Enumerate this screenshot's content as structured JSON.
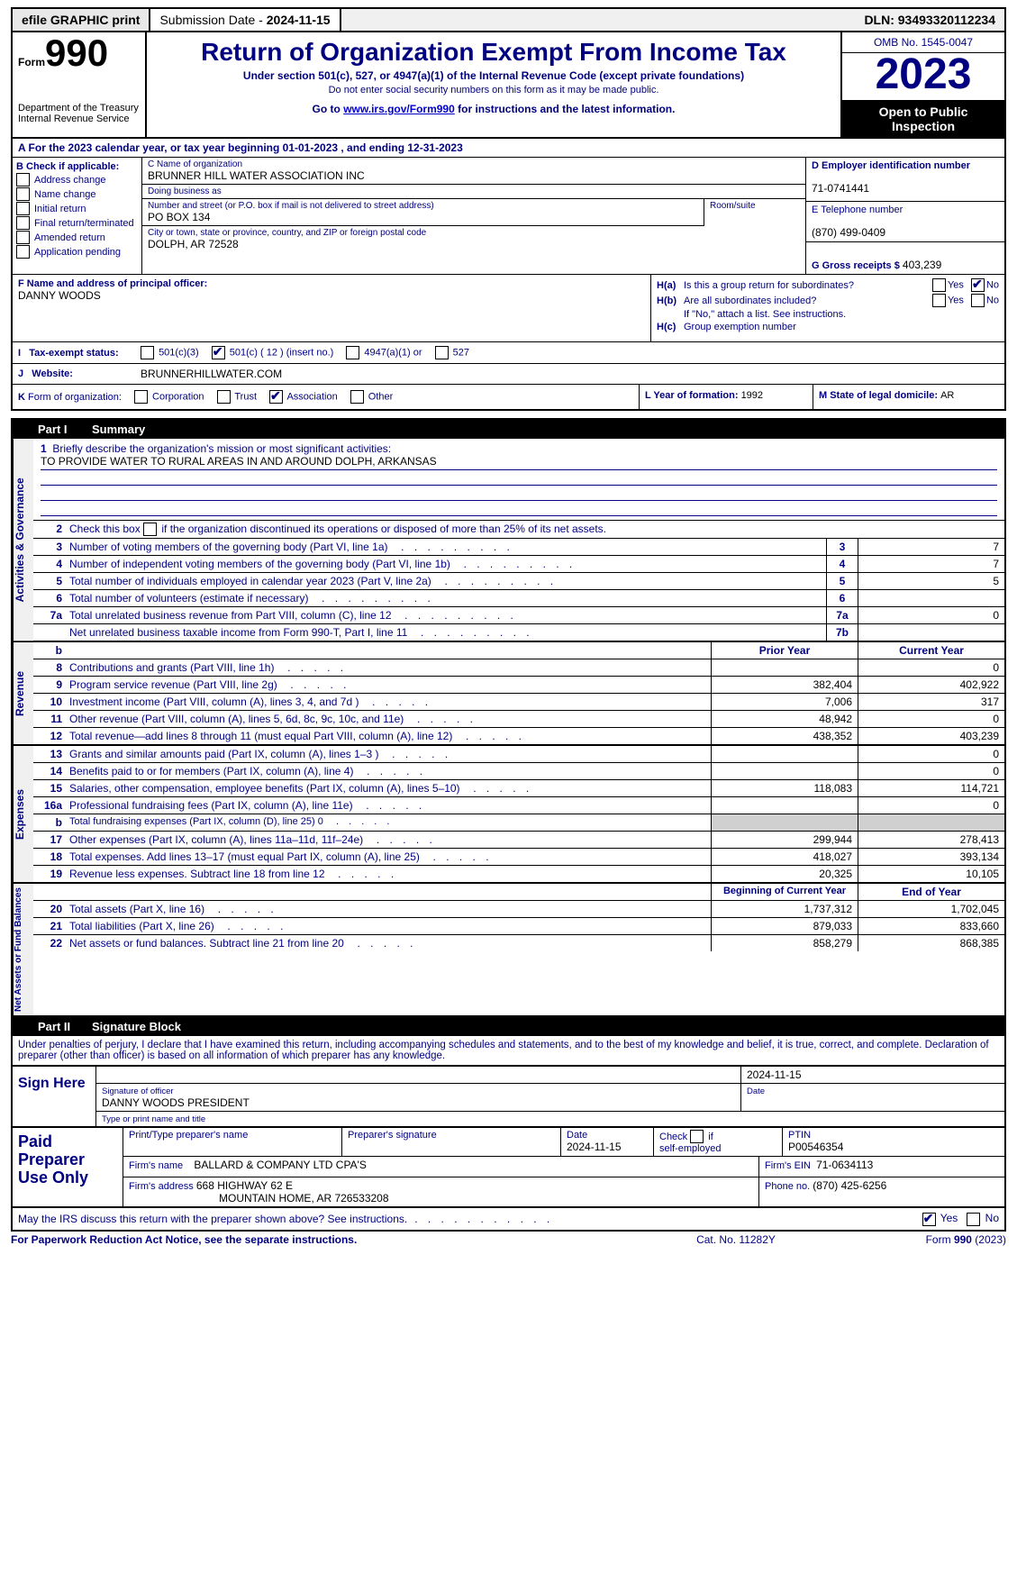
{
  "topbar": {
    "efile": "efile GRAPHIC print",
    "subdate_label": "Submission Date - ",
    "subdate": "2024-11-15",
    "dln_label": "DLN: ",
    "dln": "93493320112234"
  },
  "header": {
    "form_word": "Form",
    "form_num": "990",
    "dept": "Department of the Treasury",
    "irs": "Internal Revenue Service",
    "title": "Return of Organization Exempt From Income Tax",
    "sub1": "Under section 501(c), 527, or 4947(a)(1) of the Internal Revenue Code (except private foundations)",
    "sub2": "Do not enter social security numbers on this form as it may be made public.",
    "sub3_pre": "Go to ",
    "sub3_link": "www.irs.gov/Form990",
    "sub3_post": " for instructions and the latest information.",
    "omb": "OMB No. 1545-0047",
    "year": "2023",
    "open": "Open to Public Inspection"
  },
  "rowA": "A For the 2023 calendar year, or tax year beginning 01-01-2023     , and ending 12-31-2023",
  "boxB": {
    "label": "B Check if applicable:",
    "items": [
      "Address change",
      "Name change",
      "Initial return",
      "Final return/terminated",
      "Amended return",
      "Application pending"
    ]
  },
  "boxC": {
    "name_label": "C Name of organization",
    "name": "BRUNNER HILL WATER ASSOCIATION INC",
    "dba_label": "Doing business as",
    "dba": "",
    "addr_label": "Number and street (or P.O. box if mail is not delivered to street address)",
    "room_label": "Room/suite",
    "addr": "PO BOX 134",
    "city_label": "City or town, state or province, country, and ZIP or foreign postal code",
    "city": "DOLPH, AR   72528"
  },
  "boxD": {
    "ein_label": "D Employer identification number",
    "ein": "71-0741441",
    "tel_label": "E Telephone number",
    "tel": "(870) 499-0409",
    "g_label": "G Gross receipts $ ",
    "g_val": "403,239"
  },
  "boxF": {
    "label": "F  Name and address of principal officer:",
    "name": "DANNY WOODS"
  },
  "boxH": {
    "a_label": "H(a)",
    "a_text": "Is this a group return for subordinates?",
    "b_label": "H(b)",
    "b_text": "Are all subordinates included?",
    "b_note": "If \"No,\" attach a list. See instructions.",
    "c_label": "H(c)",
    "c_text": "Group exemption number",
    "yes": "Yes",
    "no": "No"
  },
  "taxexempt": {
    "i_label": "I",
    "label": "Tax-exempt status:",
    "opts": [
      "501(c)(3)",
      "501(c) ( 12 ) (insert no.)",
      "4947(a)(1) or",
      "527"
    ]
  },
  "rowJ": {
    "j_label": "J",
    "label": "Website:",
    "val": "BRUNNERHILLWATER.COM"
  },
  "rowK": {
    "k_label": "K",
    "label": "Form of organization:",
    "opts": [
      "Corporation",
      "Trust",
      "Association",
      "Other"
    ],
    "l_label": "L Year of formation: ",
    "l_val": "1992",
    "m_label": "M State of legal domicile: ",
    "m_val": "AR"
  },
  "part1": {
    "hdr": "Part I",
    "title": "Summary",
    "mission_label": "Briefly describe the organization's mission or most significant activities:",
    "mission": "TO PROVIDE WATER TO RURAL AREAS IN AND AROUND DOLPH, ARKANSAS",
    "line2": "Check this box      if the organization discontinued its operations or disposed of more than 25% of its net assets.",
    "rows_gov": [
      {
        "n": "3",
        "d": "Number of voting members of the governing body (Part VI, line 1a)",
        "box": "3",
        "v": "7"
      },
      {
        "n": "4",
        "d": "Number of independent voting members of the governing body (Part VI, line 1b)",
        "box": "4",
        "v": "7"
      },
      {
        "n": "5",
        "d": "Total number of individuals employed in calendar year 2023 (Part V, line 2a)",
        "box": "5",
        "v": "5"
      },
      {
        "n": "6",
        "d": "Total number of volunteers (estimate if necessary)",
        "box": "6",
        "v": ""
      },
      {
        "n": "7a",
        "d": "Total unrelated business revenue from Part VIII, column (C), line 12",
        "box": "7a",
        "v": "0"
      },
      {
        "n": "",
        "d": "Net unrelated business taxable income from Form 990-T, Part I, line 11",
        "box": "7b",
        "v": ""
      }
    ],
    "colhdr": {
      "py": "Prior Year",
      "cy": "Current Year"
    },
    "rows_rev": [
      {
        "n": "8",
        "d": "Contributions and grants (Part VIII, line 1h)",
        "py": "",
        "cy": "0"
      },
      {
        "n": "9",
        "d": "Program service revenue (Part VIII, line 2g)",
        "py": "382,404",
        "cy": "402,922"
      },
      {
        "n": "10",
        "d": "Investment income (Part VIII, column (A), lines 3, 4, and 7d )",
        "py": "7,006",
        "cy": "317"
      },
      {
        "n": "11",
        "d": "Other revenue (Part VIII, column (A), lines 5, 6d, 8c, 9c, 10c, and 11e)",
        "py": "48,942",
        "cy": "0"
      },
      {
        "n": "12",
        "d": "Total revenue—add lines 8 through 11 (must equal Part VIII, column (A), line 12)",
        "py": "438,352",
        "cy": "403,239"
      }
    ],
    "rows_exp": [
      {
        "n": "13",
        "d": "Grants and similar amounts paid (Part IX, column (A), lines 1–3 )",
        "py": "",
        "cy": "0"
      },
      {
        "n": "14",
        "d": "Benefits paid to or for members (Part IX, column (A), line 4)",
        "py": "",
        "cy": "0"
      },
      {
        "n": "15",
        "d": "Salaries, other compensation, employee benefits (Part IX, column (A), lines 5–10)",
        "py": "118,083",
        "cy": "114,721"
      },
      {
        "n": "16a",
        "d": "Professional fundraising fees (Part IX, column (A), line 11e)",
        "py": "",
        "cy": "0"
      },
      {
        "n": "b",
        "d": "Total fundraising expenses (Part IX, column (D), line 25) 0",
        "py": "grey",
        "cy": "grey"
      },
      {
        "n": "17",
        "d": "Other expenses (Part IX, column (A), lines 11a–11d, 11f–24e)",
        "py": "299,944",
        "cy": "278,413"
      },
      {
        "n": "18",
        "d": "Total expenses. Add lines 13–17 (must equal Part IX, column (A), line 25)",
        "py": "418,027",
        "cy": "393,134"
      },
      {
        "n": "19",
        "d": "Revenue less expenses. Subtract line 18 from line 12",
        "py": "20,325",
        "cy": "10,105"
      }
    ],
    "colhdr2": {
      "py": "Beginning of Current Year",
      "cy": "End of Year"
    },
    "rows_na": [
      {
        "n": "20",
        "d": "Total assets (Part X, line 16)",
        "py": "1,737,312",
        "cy": "1,702,045"
      },
      {
        "n": "21",
        "d": "Total liabilities (Part X, line 26)",
        "py": "879,033",
        "cy": "833,660"
      },
      {
        "n": "22",
        "d": "Net assets or fund balances. Subtract line 21 from line 20",
        "py": "858,279",
        "cy": "868,385"
      }
    ],
    "vtabs": {
      "gov": "Activities & Governance",
      "rev": "Revenue",
      "exp": "Expenses",
      "na": "Net Assets or Fund Balances"
    }
  },
  "part2": {
    "hdr": "Part II",
    "title": "Signature Block",
    "decl": "Under penalties of perjury, I declare that I have examined this return, including accompanying schedules and statements, and to the best of my knowledge and belief, it is true, correct, and complete. Declaration of preparer (other than officer) is based on all information of which preparer has any knowledge."
  },
  "sign": {
    "label": "Sign Here",
    "sig_date": "2024-11-15",
    "sig_label": "Signature of officer",
    "officer": "DANNY WOODS  PRESIDENT",
    "type_label": "Type or print name and title",
    "date_label": "Date"
  },
  "paid": {
    "label": "Paid Preparer Use Only",
    "c1": "Print/Type preparer's name",
    "c2": "Preparer's signature",
    "c3": "Date",
    "c3v": "2024-11-15",
    "c4": "Check        if self-employed",
    "c5": "PTIN",
    "c5v": "P00546354",
    "firm_label": "Firm's name",
    "firm": "BALLARD & COMPANY LTD CPA'S",
    "ein_label": "Firm's EIN",
    "ein": "71-0634113",
    "addr_label": "Firm's address",
    "addr1": "668 HIGHWAY 62 E",
    "addr2": "MOUNTAIN HOME, AR   726533208",
    "phone_label": "Phone no.",
    "phone": "(870) 425-6256"
  },
  "discuss": {
    "text": "May the IRS discuss this return with the preparer shown above? See instructions.",
    "yes": "Yes",
    "no": "No"
  },
  "footer": {
    "l": "For Paperwork Reduction Act Notice, see the separate instructions.",
    "m": "Cat. No. 11282Y",
    "r_pre": "Form ",
    "r_form": "990",
    "r_post": " (2023)"
  }
}
